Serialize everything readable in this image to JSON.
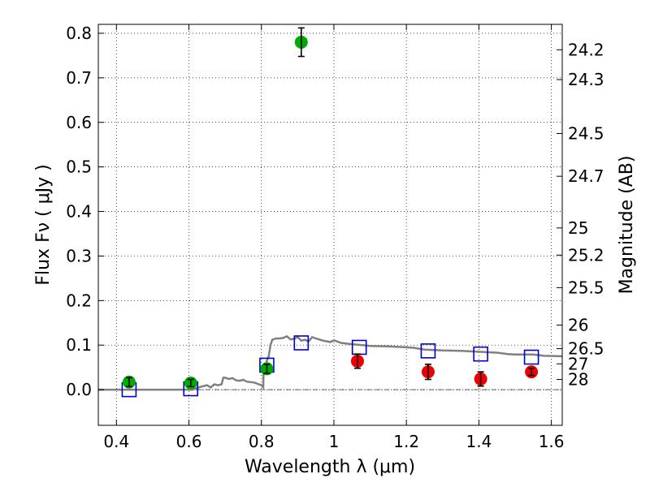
{
  "chart_data": {
    "type": "scatter",
    "xlabel": "Wavelength  λ (μm)",
    "ylabel": "Flux  Fν  ( μJy )",
    "y2label": "Magnitude (AB)",
    "xlim": [
      0.35,
      1.63
    ],
    "ylim": [
      -0.08,
      0.82
    ],
    "grid": true,
    "x_ticks": [
      0.4,
      0.6,
      0.8,
      1.0,
      1.2,
      1.4,
      1.6
    ],
    "x_tick_labels": [
      "0.4",
      "0.6",
      "0.8",
      "1",
      "1.2",
      "1.4",
      "1.6"
    ],
    "y_ticks": [
      0.0,
      0.1,
      0.2,
      0.3,
      0.4,
      0.5,
      0.6,
      0.7,
      0.8
    ],
    "y_tick_labels": [
      "0.0",
      "0.1",
      "0.2",
      "0.3",
      "0.4",
      "0.5",
      "0.6",
      "0.7",
      "0.8"
    ],
    "mag_ticks": [
      {
        "flux": 0.763,
        "label": "24.2"
      },
      {
        "flux": 0.696,
        "label": "24.3"
      },
      {
        "flux": 0.575,
        "label": "24.5"
      },
      {
        "flux": 0.479,
        "label": "24.7"
      },
      {
        "flux": 0.363,
        "label": "25"
      },
      {
        "flux": 0.302,
        "label": "25.2"
      },
      {
        "flux": 0.229,
        "label": "25.5"
      },
      {
        "flux": 0.145,
        "label": "26"
      },
      {
        "flux": 0.092,
        "label": "26.5"
      },
      {
        "flux": 0.058,
        "label": "27"
      },
      {
        "flux": 0.023,
        "label": "28"
      }
    ],
    "series": [
      {
        "kind": "line",
        "color": "#808080",
        "points": [
          [
            0.35,
            0.0
          ],
          [
            0.55,
            0.0
          ],
          [
            0.61,
            0.0
          ],
          [
            0.63,
            0.006
          ],
          [
            0.65,
            0.01
          ],
          [
            0.66,
            0.005
          ],
          [
            0.67,
            0.012
          ],
          [
            0.68,
            0.01
          ],
          [
            0.69,
            0.012
          ],
          [
            0.695,
            0.027
          ],
          [
            0.7,
            0.027
          ],
          [
            0.71,
            0.024
          ],
          [
            0.72,
            0.026
          ],
          [
            0.73,
            0.021
          ],
          [
            0.74,
            0.02
          ],
          [
            0.75,
            0.022
          ],
          [
            0.76,
            0.018
          ],
          [
            0.78,
            0.016
          ],
          [
            0.8,
            0.01
          ],
          [
            0.805,
            0.005
          ],
          [
            0.806,
            0.045
          ],
          [
            0.81,
            0.042
          ],
          [
            0.815,
            0.065
          ],
          [
            0.82,
            0.075
          ],
          [
            0.825,
            0.1
          ],
          [
            0.83,
            0.112
          ],
          [
            0.84,
            0.115
          ],
          [
            0.85,
            0.115
          ],
          [
            0.86,
            0.116
          ],
          [
            0.87,
            0.12
          ],
          [
            0.88,
            0.113
          ],
          [
            0.89,
            0.114
          ],
          [
            0.9,
            0.118
          ],
          [
            0.91,
            0.11
          ],
          [
            0.92,
            0.112
          ],
          [
            0.93,
            0.108
          ],
          [
            0.94,
            0.118
          ],
          [
            0.95,
            0.115
          ],
          [
            0.97,
            0.11
          ],
          [
            0.99,
            0.107
          ],
          [
            1.0,
            0.111
          ],
          [
            1.02,
            0.105
          ],
          [
            1.05,
            0.102
          ],
          [
            1.08,
            0.1
          ],
          [
            1.1,
            0.098
          ],
          [
            1.15,
            0.097
          ],
          [
            1.2,
            0.095
          ],
          [
            1.22,
            0.094
          ],
          [
            1.25,
            0.09
          ],
          [
            1.3,
            0.088
          ],
          [
            1.35,
            0.087
          ],
          [
            1.4,
            0.085
          ],
          [
            1.45,
            0.083
          ],
          [
            1.48,
            0.08
          ],
          [
            1.5,
            0.079
          ],
          [
            1.55,
            0.079
          ],
          [
            1.58,
            0.076
          ],
          [
            1.63,
            0.075
          ]
        ]
      },
      {
        "kind": "model_squares",
        "color": "#0000cc",
        "points": [
          [
            0.435,
            0.0
          ],
          [
            0.605,
            0.002
          ],
          [
            0.815,
            0.055
          ],
          [
            0.91,
            0.105
          ],
          [
            1.07,
            0.095
          ],
          [
            1.26,
            0.087
          ],
          [
            1.405,
            0.08
          ],
          [
            1.545,
            0.073
          ]
        ]
      },
      {
        "kind": "points_green",
        "color": "#00aa00",
        "points": [
          {
            "x": 0.435,
            "y": 0.017,
            "err": 0.01
          },
          {
            "x": 0.605,
            "y": 0.015,
            "err": 0.008
          },
          {
            "x": 0.815,
            "y": 0.047,
            "err": 0.01
          },
          {
            "x": 0.91,
            "y": 0.78,
            "err": 0.032
          }
        ]
      },
      {
        "kind": "points_red",
        "color": "#ee0000",
        "points": [
          {
            "x": 1.065,
            "y": 0.064,
            "err": 0.016
          },
          {
            "x": 1.26,
            "y": 0.04,
            "err": 0.017
          },
          {
            "x": 1.405,
            "y": 0.024,
            "err": 0.016
          },
          {
            "x": 1.545,
            "y": 0.04,
            "err": 0.008
          }
        ]
      }
    ]
  }
}
